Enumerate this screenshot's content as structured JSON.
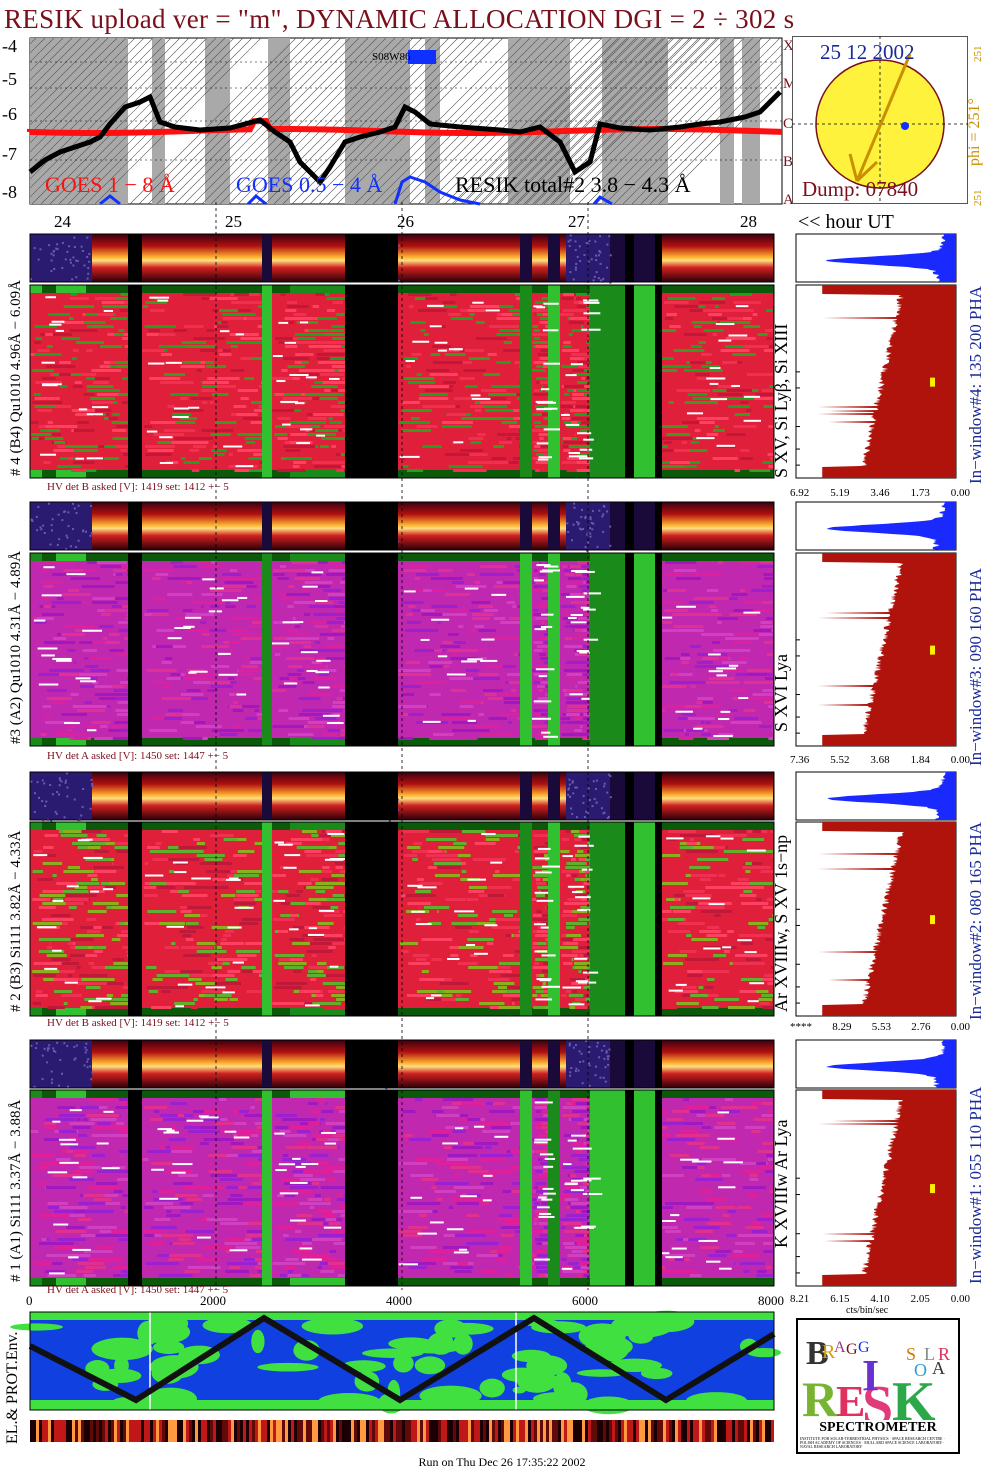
{
  "title": "RESIK upload ver = \"m\", DYNAMIC ALLOCATION  DGI =   2 ÷ 302 s",
  "colors": {
    "title": "#7a0f1c",
    "goes_long": "#ff1010",
    "goes_short": "#1030ff",
    "resik": "#000000",
    "pha_fill": "#1a2aff",
    "spec_fill": "#b0120c",
    "map_sea": "#1040e0",
    "map_land": "#40e040",
    "label_blue": "#1a2a9a"
  },
  "top_chart": {
    "yticks": [
      "-4",
      "-5",
      "-6",
      "-7",
      "-8"
    ],
    "class_labels": [
      "X",
      "M",
      "C",
      "B",
      "A"
    ],
    "legend": {
      "goes_long": "GOES 1 − 8 Å",
      "goes_short": "GOES 0.5 − 4 Å",
      "resik": "RESIK total#2  3.8 − 4.3 Å"
    },
    "marker": "S08W86",
    "hours": [
      "24",
      "25",
      "26",
      "27",
      "28"
    ],
    "hour_axis_label": "<< hour UT"
  },
  "sun": {
    "date": "25 12 2002",
    "dump": "Dump: 07840",
    "phi": "phi = 251°",
    "phi_top": "251",
    "phi_bot": "251"
  },
  "panels": [
    {
      "label": "# 4 (B4) Qu1010 4.96Å − 6.09Å",
      "line": "S XV, Si Lyβ, Si XIII",
      "window": "In−window#4:  135 200 PHA",
      "hv": "HV det B asked [V]:  1419 set:  1412  +−    5",
      "ticks": [
        "6.92",
        "5.19",
        "3.46",
        "1.73",
        "0.00"
      ]
    },
    {
      "label": "#3 (A2) Qu1010  4.31Å − 4.89Å",
      "line": "S XVI Lya",
      "window": "In−window#3:  090 160 PHA",
      "hv": "HV det A asked [V]:  1450 set:  1447  +−    5",
      "ticks": [
        "7.36",
        "5.52",
        "3.68",
        "1.84",
        "0.00"
      ]
    },
    {
      "label": "# 2 (B3) Si111  3.82Å − 4.33Å",
      "line": "Ar XVIIIw, S XV 1s−np",
      "window": "In−window#2:  080 165 PHA",
      "hv": "HV det B asked [V]:  1419 set:  1412  +−    5",
      "ticks": [
        "****",
        "8.29",
        "5.53",
        "2.76",
        "0.00"
      ]
    },
    {
      "label": "# 1 (A1) Si111  3.37Å − 3.88Å",
      "line": "K XVIIIw  Ar Lya",
      "window": "In−window#1:  055 110 PHA",
      "hv": "HV det A asked [V]:  1450 set:  1447  +−    5",
      "ticks": [
        "8.21",
        "6.15",
        "4.10",
        "2.05",
        "0.00"
      ]
    }
  ],
  "spectrum_xlabel": "cts/bin/sec",
  "bottom_xticks": [
    "0",
    "2000",
    "4000",
    "6000",
    "8000"
  ],
  "env_label": "EL.& PROT.Env.",
  "logo": {
    "letters": "BRAGG RESIK SOLAR",
    "word": "SPECTROMETER",
    "fine": "INSTITUTE FOR SOLAR-TERRESTRIAL PHYSICS · SPACE RESEARCH CENTRE · POLISH ACADEMY OF SCIENCES · MULLARD SPACE SCIENCE LABORATORY · NAVAL RESEARCH LABORATORY"
  },
  "footer": "Run on Thu Dec 26 17:35:22 2002"
}
